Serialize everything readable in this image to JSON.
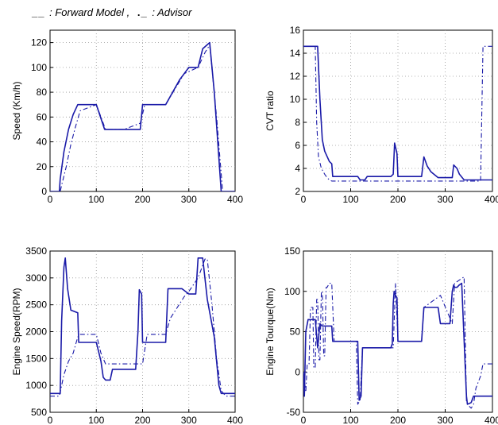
{
  "legend": {
    "forward_symbol": "__",
    "forward_label": ": Forward Model ,",
    "advisor_symbol": "._",
    "advisor_label": ": Advisor"
  },
  "colors": {
    "line": "#1a1aa8",
    "grid": "#9a9a9a",
    "axis": "#000000"
  },
  "chart_data": [
    {
      "type": "line",
      "ylabel": "Speed (Km/h)",
      "xlim": [
        0,
        400
      ],
      "ylim": [
        0,
        130
      ],
      "xticks": [
        0,
        100,
        200,
        300,
        400
      ],
      "yticks": [
        0,
        20,
        40,
        60,
        80,
        100,
        120
      ],
      "grid": true,
      "series": [
        {
          "style": "solid",
          "x": [
            0,
            20,
            22,
            30,
            40,
            50,
            60,
            100,
            118,
            160,
            195,
            200,
            250,
            280,
            300,
            320,
            330,
            345,
            355,
            370,
            375,
            400
          ],
          "y": [
            0,
            0,
            10,
            32,
            50,
            62,
            70,
            70,
            50,
            50,
            50,
            70,
            70,
            90,
            100,
            100,
            115,
            120,
            80,
            0,
            0,
            0
          ]
        },
        {
          "style": "dashdot",
          "x": [
            0,
            22,
            25,
            35,
            45,
            55,
            65,
            100,
            120,
            160,
            195,
            205,
            250,
            290,
            320,
            335,
            345,
            360,
            373,
            400
          ],
          "y": [
            0,
            0,
            5,
            20,
            38,
            52,
            65,
            70,
            50,
            50,
            55,
            70,
            70,
            95,
            100,
            112,
            118,
            60,
            0,
            0
          ]
        }
      ]
    },
    {
      "type": "line",
      "ylabel": "CVT ratio",
      "xlim": [
        0,
        400
      ],
      "ylim": [
        2,
        16
      ],
      "xticks": [
        0,
        100,
        200,
        300,
        400
      ],
      "yticks": [
        2,
        4,
        6,
        8,
        10,
        12,
        14,
        16
      ],
      "grid": true,
      "series": [
        {
          "style": "solid",
          "x": [
            0,
            30,
            35,
            40,
            45,
            55,
            60,
            62,
            100,
            115,
            120,
            130,
            135,
            185,
            190,
            193,
            198,
            200,
            250,
            255,
            262,
            270,
            285,
            300,
            315,
            318,
            325,
            330,
            340,
            400
          ],
          "y": [
            14.6,
            14.6,
            10,
            6.5,
            5.5,
            4.6,
            4.4,
            3.3,
            3.3,
            3.3,
            3,
            3,
            3.3,
            3.3,
            3.5,
            6.2,
            5.3,
            3.3,
            3.3,
            5,
            4.2,
            3.7,
            3.2,
            3.2,
            3.2,
            4.3,
            4,
            3.5,
            3,
            3
          ]
        },
        {
          "style": "dashdot",
          "x": [
            0,
            25,
            28,
            32,
            38,
            45,
            50,
            55,
            60,
            100,
            200,
            300,
            375,
            380,
            400
          ],
          "y": [
            14.6,
            14.6,
            8,
            5,
            4,
            3.5,
            3.2,
            3,
            2.9,
            2.9,
            2.9,
            2.9,
            2.9,
            14.6,
            14.6
          ]
        }
      ]
    },
    {
      "type": "line",
      "ylabel": "Engine Speed(RPM)",
      "xlim": [
        0,
        400
      ],
      "ylim": [
        500,
        3500
      ],
      "xticks": [
        0,
        100,
        200,
        300,
        400
      ],
      "yticks": [
        500,
        1000,
        1500,
        2000,
        2500,
        3000,
        3500
      ],
      "grid": true,
      "series": [
        {
          "style": "solid",
          "x": [
            0,
            22,
            25,
            30,
            33,
            38,
            45,
            60,
            62,
            100,
            110,
            115,
            120,
            130,
            135,
            185,
            190,
            193,
            198,
            200,
            250,
            255,
            285,
            300,
            315,
            320,
            330,
            340,
            355,
            365,
            370,
            400
          ],
          "y": [
            850,
            850,
            2200,
            3200,
            3370,
            2800,
            2400,
            2350,
            1800,
            1800,
            1450,
            1150,
            1100,
            1100,
            1300,
            1300,
            2000,
            2780,
            2700,
            1800,
            1800,
            2800,
            2800,
            2700,
            2700,
            3370,
            3370,
            2600,
            1900,
            1000,
            850,
            850
          ]
        },
        {
          "style": "dashdot",
          "x": [
            0,
            20,
            25,
            30,
            40,
            50,
            60,
            65,
            100,
            110,
            120,
            200,
            210,
            250,
            260,
            290,
            300,
            320,
            335,
            340,
            350,
            360,
            370,
            380,
            400
          ],
          "y": [
            800,
            800,
            1000,
            1200,
            1450,
            1600,
            1900,
            1950,
            1950,
            1600,
            1400,
            1400,
            1950,
            1950,
            2250,
            2650,
            2750,
            3000,
            3350,
            3350,
            2500,
            1500,
            900,
            800,
            800
          ]
        }
      ]
    },
    {
      "type": "line",
      "ylabel": "Engine Tourque(Nm)",
      "xlim": [
        0,
        400
      ],
      "ylim": [
        -50,
        150
      ],
      "xticks": [
        0,
        100,
        200,
        300,
        400
      ],
      "yticks": [
        -50,
        0,
        50,
        100,
        150
      ],
      "grid": true,
      "series": [
        {
          "style": "solid",
          "x": [
            0,
            2,
            5,
            10,
            25,
            28,
            30,
            35,
            40,
            45,
            50,
            55,
            60,
            62,
            100,
            110,
            115,
            118,
            122,
            125,
            130,
            185,
            188,
            190,
            192,
            195,
            198,
            200,
            250,
            255,
            285,
            290,
            310,
            315,
            318,
            320,
            325,
            330,
            335,
            340,
            345,
            347,
            355,
            360,
            375,
            400
          ],
          "y": [
            0,
            -30,
            50,
            65,
            65,
            45,
            30,
            60,
            57,
            57,
            57,
            57,
            57,
            38,
            38,
            38,
            38,
            -35,
            -30,
            30,
            30,
            30,
            35,
            85,
            100,
            95,
            92,
            38,
            38,
            80,
            80,
            60,
            60,
            100,
            108,
            105,
            105,
            108,
            110,
            40,
            -30,
            -40,
            -38,
            -30,
            -30,
            -30
          ]
        },
        {
          "style": "dashdot",
          "x": [
            0,
            5,
            8,
            12,
            15,
            20,
            22,
            25,
            28,
            30,
            33,
            35,
            38,
            40,
            43,
            45,
            48,
            50,
            55,
            60,
            65,
            100,
            112,
            115,
            120,
            125,
            130,
            190,
            195,
            200,
            250,
            255,
            290,
            315,
            320,
            340,
            345,
            350,
            355,
            360,
            365,
            375,
            380,
            400
          ],
          "y": [
            0,
            -25,
            10,
            10,
            80,
            80,
            5,
            5,
            90,
            90,
            15,
            15,
            100,
            100,
            20,
            20,
            105,
            105,
            110,
            110,
            38,
            38,
            38,
            -40,
            -35,
            30,
            30,
            30,
            110,
            38,
            38,
            80,
            95,
            60,
            110,
            118,
            -38,
            -42,
            -45,
            -40,
            -20,
            -5,
            10,
            10
          ]
        }
      ]
    }
  ]
}
